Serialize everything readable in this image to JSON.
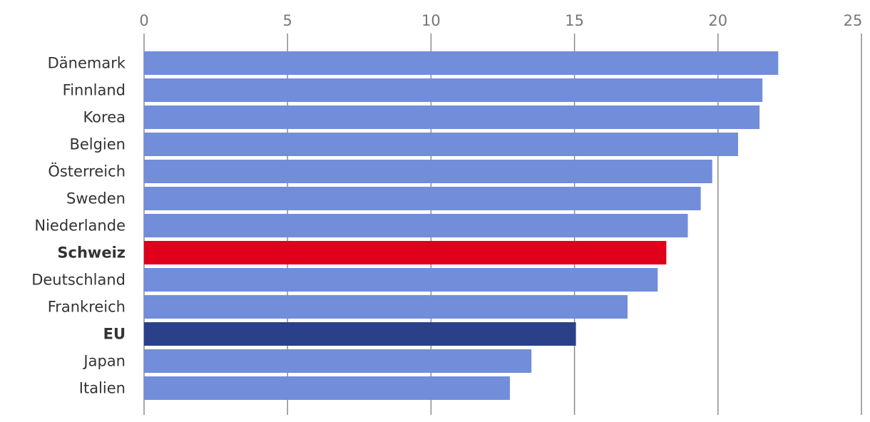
{
  "chart_data": {
    "type": "bar",
    "orientation": "horizontal",
    "title": "",
    "xlabel": "",
    "ylabel": "",
    "xlim": [
      0,
      25
    ],
    "ticks": [
      0,
      5,
      10,
      15,
      20,
      25
    ],
    "tick_labels": [
      "0",
      "5",
      "10",
      "15",
      "20",
      "25"
    ],
    "grid": true,
    "axis_position": "top",
    "categories": [
      "Dänemark",
      "Finnland",
      "Korea",
      "Belgien",
      "Österreich",
      "Sweden",
      "Niederlande",
      "Schweiz",
      "Deutschland",
      "Frankreich",
      "EU",
      "Japan",
      "Italien"
    ],
    "values": [
      22.1,
      21.55,
      21.45,
      20.7,
      19.8,
      19.4,
      18.95,
      18.2,
      17.9,
      16.85,
      15.05,
      13.5,
      12.75
    ],
    "highlight": {
      "Schweiz": "#e0001b",
      "EU": "#2a4089"
    },
    "bold_categories": [
      "Schweiz",
      "EU"
    ],
    "default_color": "#728dd9"
  }
}
